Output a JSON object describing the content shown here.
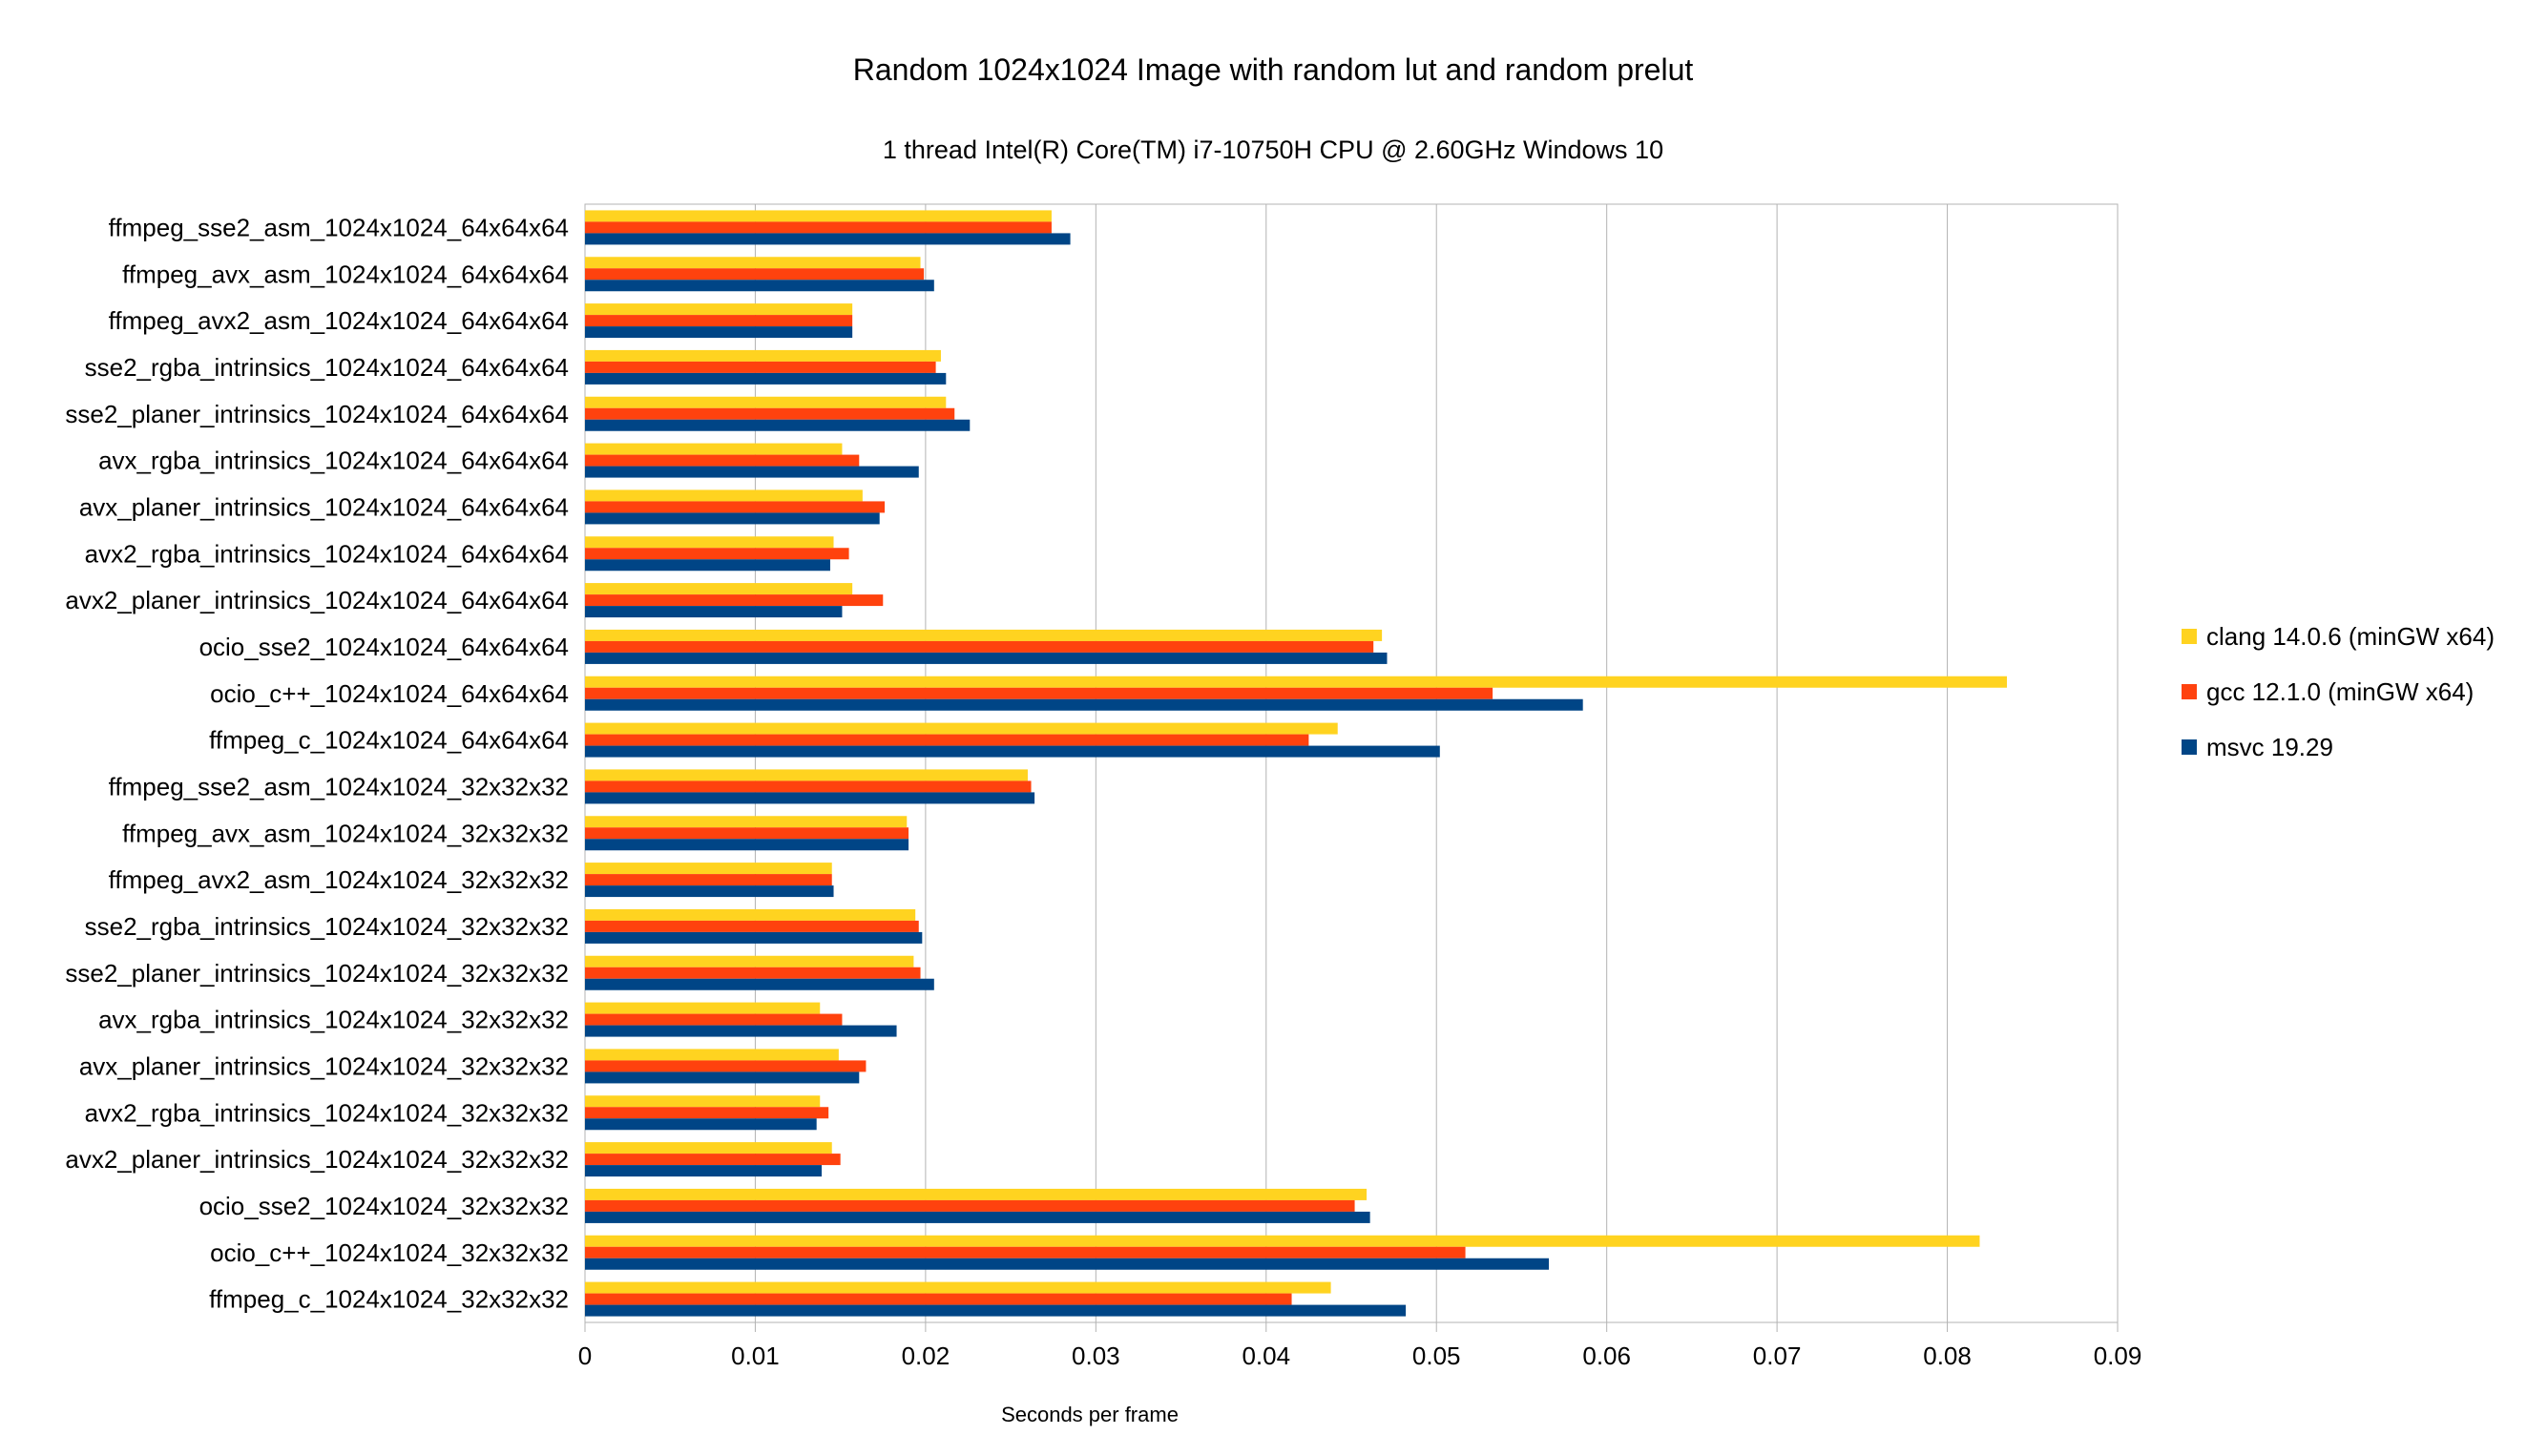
{
  "chart_data": {
    "type": "bar",
    "orientation": "horizontal",
    "title": "Random 1024x1024 Image with random lut and random prelut",
    "subtitle": "1 thread Intel(R) Core(TM) i7-10750H CPU @ 2.60GHz Windows 10",
    "xlabel": "Seconds per frame",
    "ylabel": "",
    "xlim": [
      0,
      0.09
    ],
    "xticks": [
      "0",
      "0.01",
      "0.02",
      "0.03",
      "0.04",
      "0.05",
      "0.06",
      "0.07",
      "0.08",
      "0.09"
    ],
    "grid": "vertical",
    "legend_position": "right",
    "categories": [
      "ffmpeg_sse2_asm_1024x1024_64x64x64",
      "ffmpeg_avx_asm_1024x1024_64x64x64",
      "ffmpeg_avx2_asm_1024x1024_64x64x64",
      "sse2_rgba_intrinsics_1024x1024_64x64x64",
      "sse2_planer_intrinsics_1024x1024_64x64x64",
      "avx_rgba_intrinsics_1024x1024_64x64x64",
      "avx_planer_intrinsics_1024x1024_64x64x64",
      "avx2_rgba_intrinsics_1024x1024_64x64x64",
      "avx2_planer_intrinsics_1024x1024_64x64x64",
      "ocio_sse2_1024x1024_64x64x64",
      "ocio_c++_1024x1024_64x64x64",
      "ffmpeg_c_1024x1024_64x64x64",
      "ffmpeg_sse2_asm_1024x1024_32x32x32",
      "ffmpeg_avx_asm_1024x1024_32x32x32",
      "ffmpeg_avx2_asm_1024x1024_32x32x32",
      "sse2_rgba_intrinsics_1024x1024_32x32x32",
      "sse2_planer_intrinsics_1024x1024_32x32x32",
      "avx_rgba_intrinsics_1024x1024_32x32x32",
      "avx_planer_intrinsics_1024x1024_32x32x32",
      "avx2_rgba_intrinsics_1024x1024_32x32x32",
      "avx2_planer_intrinsics_1024x1024_32x32x32",
      "ocio_sse2_1024x1024_32x32x32",
      "ocio_c++_1024x1024_32x32x32",
      "ffmpeg_c_1024x1024_32x32x32"
    ],
    "series": [
      {
        "name": "clang 14.0.6 (minGW x64)",
        "color": "#FFD320",
        "values": [
          0.0274,
          0.0197,
          0.0157,
          0.0209,
          0.0212,
          0.0151,
          0.0163,
          0.0146,
          0.0157,
          0.0468,
          0.0835,
          0.0442,
          0.026,
          0.0189,
          0.0145,
          0.0194,
          0.0193,
          0.0138,
          0.0149,
          0.0138,
          0.0145,
          0.0459,
          0.0819,
          0.0438
        ]
      },
      {
        "name": "gcc 12.1.0 (minGW x64)",
        "color": "#FF420E",
        "values": [
          0.0274,
          0.0199,
          0.0157,
          0.0206,
          0.0217,
          0.0161,
          0.0176,
          0.0155,
          0.0175,
          0.0463,
          0.0533,
          0.0425,
          0.0262,
          0.019,
          0.0145,
          0.0196,
          0.0197,
          0.0151,
          0.0165,
          0.0143,
          0.015,
          0.0452,
          0.0517,
          0.0415
        ]
      },
      {
        "name": "msvc 19.29",
        "color": "#004586",
        "values": [
          0.0285,
          0.0205,
          0.0157,
          0.0212,
          0.0226,
          0.0196,
          0.0173,
          0.0144,
          0.0151,
          0.0471,
          0.0586,
          0.0502,
          0.0264,
          0.019,
          0.0146,
          0.0198,
          0.0205,
          0.0183,
          0.0161,
          0.0136,
          0.0139,
          0.0461,
          0.0566,
          0.0482
        ]
      }
    ]
  }
}
